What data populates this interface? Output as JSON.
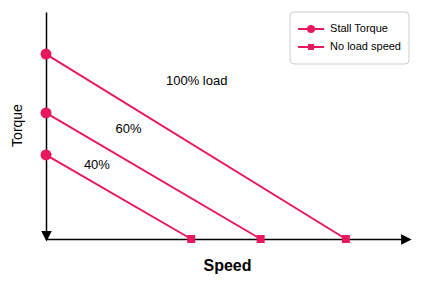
{
  "chart_data": {
    "type": "line",
    "xlabel": "Speed",
    "ylabel": "Torque",
    "color": "#e8185d",
    "xlim": [
      0,
      1.15
    ],
    "ylim": [
      0,
      1.08
    ],
    "xticks": [],
    "yticks": [],
    "tick_labels": false,
    "grid": false,
    "legend": "upper right",
    "series": [
      {
        "name": "Stall Torque",
        "type": "scatter",
        "marker": "circle",
        "x": [
          0,
          0,
          0
        ],
        "values": [
          0.88,
          0.6,
          0.4
        ]
      },
      {
        "name": "No load speed",
        "type": "scatter",
        "marker": "square",
        "x": [
          0.95,
          0.68,
          0.46
        ],
        "values": [
          0,
          0,
          0
        ]
      }
    ],
    "annotations": [
      {
        "text": "100% load",
        "x": 0.38,
        "y": 0.75
      },
      {
        "text": "60%",
        "x": 0.22,
        "y": 0.52
      },
      {
        "text": "40%",
        "x": 0.12,
        "y": 0.35
      }
    ]
  }
}
